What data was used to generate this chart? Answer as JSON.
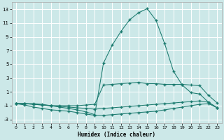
{
  "xlabel": "Humidex (Indice chaleur)",
  "background_color": "#cce8e8",
  "grid_color": "#b8d8d8",
  "line_color": "#1a7a6e",
  "xlim": [
    -0.5,
    23.5
  ],
  "ylim": [
    -3.5,
    14.0
  ],
  "xticks": [
    0,
    1,
    2,
    3,
    4,
    5,
    6,
    7,
    8,
    9,
    10,
    11,
    12,
    13,
    14,
    15,
    16,
    17,
    18,
    19,
    20,
    21,
    22,
    23
  ],
  "yticks": [
    -3,
    -1,
    1,
    3,
    5,
    7,
    9,
    11,
    13
  ],
  "series1_x": [
    0,
    1,
    2,
    3,
    4,
    5,
    6,
    7,
    8,
    9,
    10,
    11,
    12,
    13,
    14,
    15,
    16,
    17,
    18,
    19,
    20,
    21,
    22,
    23
  ],
  "series1_y": [
    -0.7,
    -0.7,
    -0.8,
    -0.9,
    -1.0,
    -1.0,
    -1.0,
    -1.0,
    -0.9,
    -0.8,
    2.0,
    2.1,
    2.2,
    2.3,
    2.4,
    2.2,
    2.2,
    2.1,
    2.1,
    2.1,
    2.0,
    1.9,
    0.5,
    -0.6
  ],
  "series2_x": [
    0,
    1,
    2,
    3,
    4,
    5,
    6,
    7,
    8,
    9,
    10,
    11,
    12,
    13,
    14,
    15,
    16,
    17,
    18,
    19,
    20,
    21,
    22,
    23
  ],
  "series2_y": [
    -0.7,
    -0.7,
    -0.8,
    -0.9,
    -1.0,
    -1.1,
    -1.2,
    -1.3,
    -1.4,
    -1.5,
    -1.4,
    -1.3,
    -1.2,
    -1.1,
    -1.0,
    -0.9,
    -0.8,
    -0.7,
    -0.6,
    -0.5,
    -0.4,
    -0.3,
    -0.5,
    -1.3
  ],
  "series3_x": [
    0,
    1,
    2,
    3,
    4,
    5,
    6,
    7,
    8,
    9,
    10,
    11,
    12,
    13,
    14,
    15,
    16,
    17,
    18,
    19,
    20,
    21,
    22,
    23
  ],
  "series3_y": [
    -0.7,
    -0.9,
    -1.2,
    -1.4,
    -1.6,
    -1.7,
    -1.8,
    -2.0,
    -2.2,
    -2.4,
    -2.4,
    -2.3,
    -2.2,
    -2.1,
    -2.0,
    -1.9,
    -1.8,
    -1.6,
    -1.4,
    -1.2,
    -1.0,
    -0.8,
    -0.7,
    -1.3
  ],
  "series4_x": [
    0,
    1,
    2,
    3,
    4,
    5,
    6,
    7,
    8,
    9,
    10,
    11,
    12,
    13,
    14,
    15,
    16,
    17,
    18,
    19,
    20,
    21,
    22,
    23
  ],
  "series4_y": [
    -0.7,
    -0.7,
    -0.7,
    -0.8,
    -1.0,
    -1.2,
    -1.4,
    -1.6,
    -1.9,
    -2.3,
    5.2,
    7.8,
    9.8,
    11.5,
    12.5,
    13.1,
    11.4,
    8.0,
    4.0,
    2.0,
    0.9,
    0.7,
    -0.5,
    -1.3
  ]
}
